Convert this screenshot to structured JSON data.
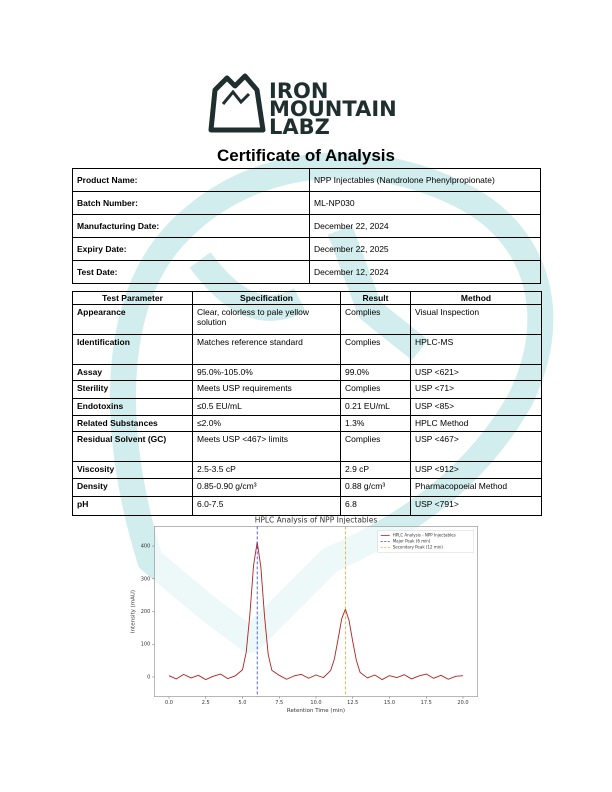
{
  "logo": {
    "lines": [
      "IRON",
      "MOUNTAIN",
      "LABZ"
    ]
  },
  "title": "Certificate of Analysis",
  "info": {
    "rows": [
      [
        "Product Name:",
        "NPP Injectables (Nandrolone Phenylpropionate)"
      ],
      [
        "Batch Number:",
        "ML-NP030"
      ],
      [
        "Manufacturing Date:",
        "December 22, 2024"
      ],
      [
        "Expiry Date:",
        "December 22, 2025"
      ],
      [
        "Test Date:",
        "December 12, 2024"
      ]
    ]
  },
  "tests": {
    "header": [
      "Test Parameter",
      "Specification",
      "Result",
      "Method"
    ],
    "rows": [
      [
        "Appearance",
        "Clear, colorless to pale yellow solution",
        "Complies",
        "Visual Inspection"
      ],
      [
        "Identification",
        "Matches reference standard",
        "Complies",
        "HPLC-MS"
      ],
      [
        "Assay",
        "95.0%-105.0%",
        "99.0%",
        "USP <621>"
      ],
      [
        "Sterility",
        "Meets USP requirements",
        "Complies",
        "USP <71>"
      ],
      [
        "Endotoxins",
        "≤0.5 EU/mL",
        "0.21 EU/mL",
        "USP <85>"
      ],
      [
        "Related Substances",
        "≤2.0%",
        "1.3%",
        "HPLC Method"
      ],
      [
        "Residual Solvent (GC)",
        "Meets USP <467> limits",
        "Complies",
        "USP <467>"
      ],
      [
        "Viscosity",
        "2.5-3.5 cP",
        "2.9 cP",
        "USP <912>"
      ],
      [
        "Density",
        "0.85-0.90 g/cm³",
        "0.88 g/cm³",
        "Pharmacopoeial Method"
      ],
      [
        "pH",
        "6.0-7.5",
        "6.8",
        "USP <791>"
      ]
    ]
  },
  "chart_data": {
    "type": "line",
    "title": "HPLC Analysis of NPP Injectables",
    "x_label": "Retention Time (min)",
    "y_label": "Intensity (mAU)",
    "xlim": [
      -1,
      21
    ],
    "ylim": [
      -60,
      460
    ],
    "xticks": [
      {
        "value": 0,
        "label": "0.0"
      },
      {
        "value": 2.5,
        "label": "2.5"
      },
      {
        "value": 5,
        "label": "5.0"
      },
      {
        "value": 7.5,
        "label": "7.5"
      },
      {
        "value": 10,
        "label": "10.0"
      },
      {
        "value": 12.5,
        "label": "12.5"
      },
      {
        "value": 15,
        "label": "15.0"
      },
      {
        "value": 17.5,
        "label": "17.5"
      },
      {
        "value": 20,
        "label": "20.0"
      }
    ],
    "yticks": [
      0,
      100,
      200,
      300,
      400
    ],
    "legend": "upper right",
    "series": [
      {
        "name": "HPLC Analysis - NPP Injectables",
        "color": "#b22222",
        "x": [
          0,
          0.5,
          1,
          1.5,
          2,
          2.5,
          3,
          3.5,
          4,
          4.5,
          5,
          5.25,
          5.5,
          5.75,
          6,
          6.25,
          6.5,
          6.75,
          7,
          7.5,
          8,
          8.5,
          9,
          9.5,
          10,
          10.5,
          11,
          11.25,
          11.5,
          11.75,
          12,
          12.25,
          12.5,
          12.75,
          13,
          13.5,
          14,
          14.5,
          15,
          15.5,
          16,
          16.5,
          17,
          17.5,
          18,
          18.5,
          19,
          19.5,
          20
        ],
        "values": [
          4,
          -6,
          8,
          -3,
          5,
          -8,
          2,
          9,
          -5,
          3,
          22,
          75,
          190,
          340,
          412,
          335,
          185,
          68,
          20,
          5,
          -7,
          3,
          8,
          -4,
          6,
          -2,
          20,
          55,
          115,
          178,
          207,
          172,
          108,
          50,
          14,
          -3,
          6,
          -8,
          4,
          -2,
          7,
          -6,
          3,
          9,
          -4,
          5,
          -7,
          2,
          4
        ]
      }
    ],
    "vlines": [
      {
        "name": "Major Peak (6 min)",
        "x": 6,
        "color": "#3344cc"
      },
      {
        "name": "Secondary Peak (12 min)",
        "x": 12,
        "color": "#e8a33a"
      }
    ]
  }
}
